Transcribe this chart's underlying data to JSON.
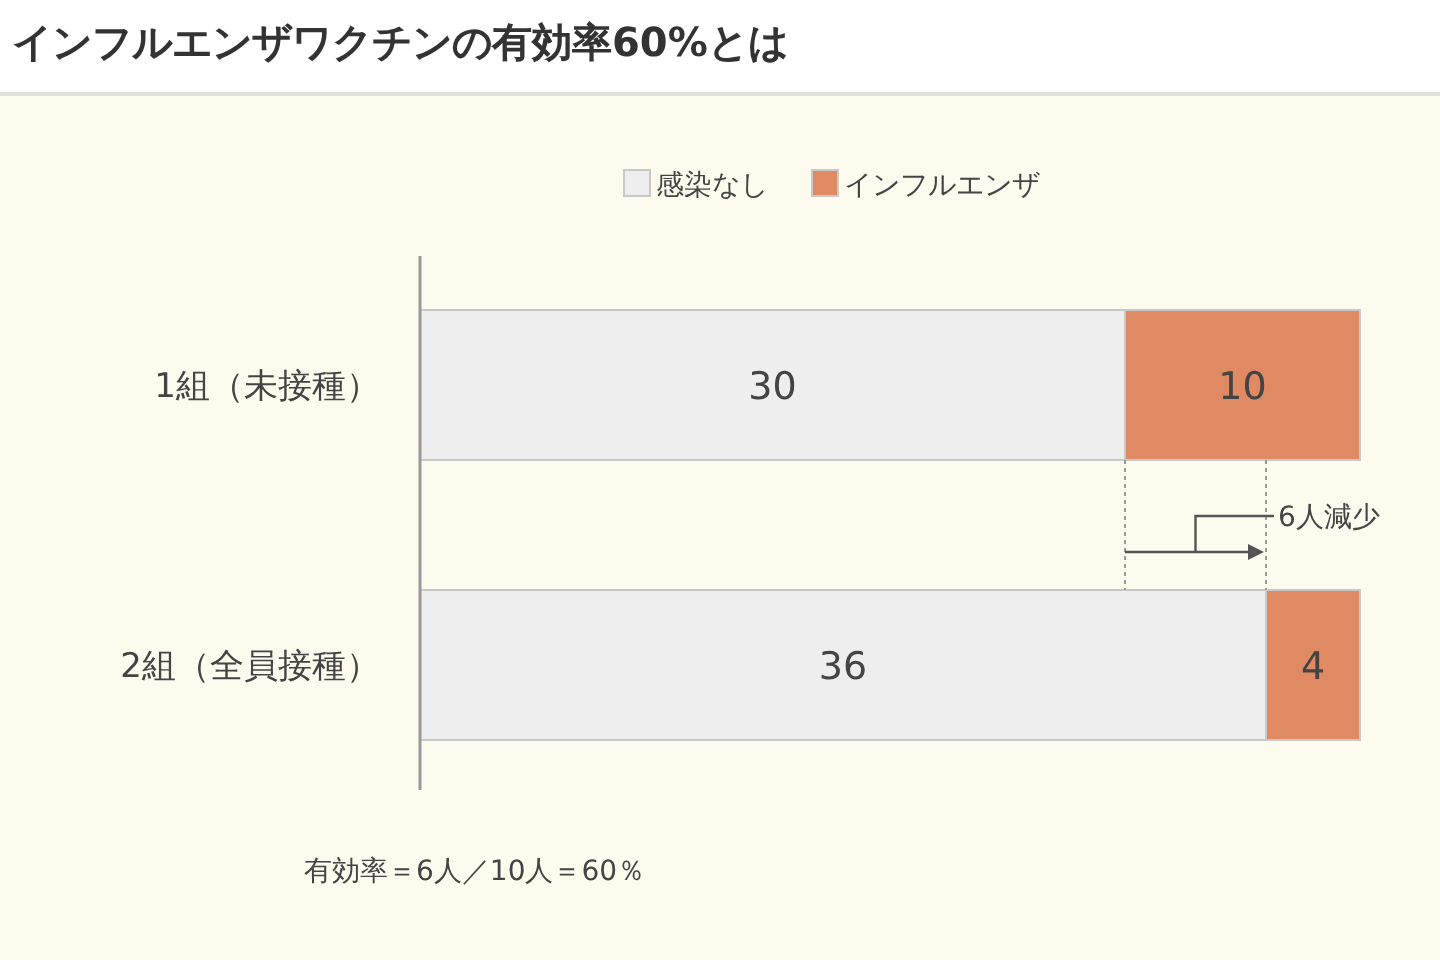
{
  "chart_data": {
    "type": "bar",
    "orientation": "horizontal",
    "stacked": true,
    "title": "インフルエンザワクチンの有効率60%とは",
    "categories": [
      "1組（未接種）",
      "2組（全員接種）"
    ],
    "series": [
      {
        "name": "感染なし",
        "color": "#eeeeee",
        "values": [
          30,
          36
        ]
      },
      {
        "name": "インフルエンザ",
        "color": "#e08a64",
        "values": [
          10,
          4
        ]
      }
    ],
    "data_labels": true,
    "legend": "top",
    "annotations": [
      "6人減少",
      "有効率＝6人／10人＝60％"
    ]
  }
}
